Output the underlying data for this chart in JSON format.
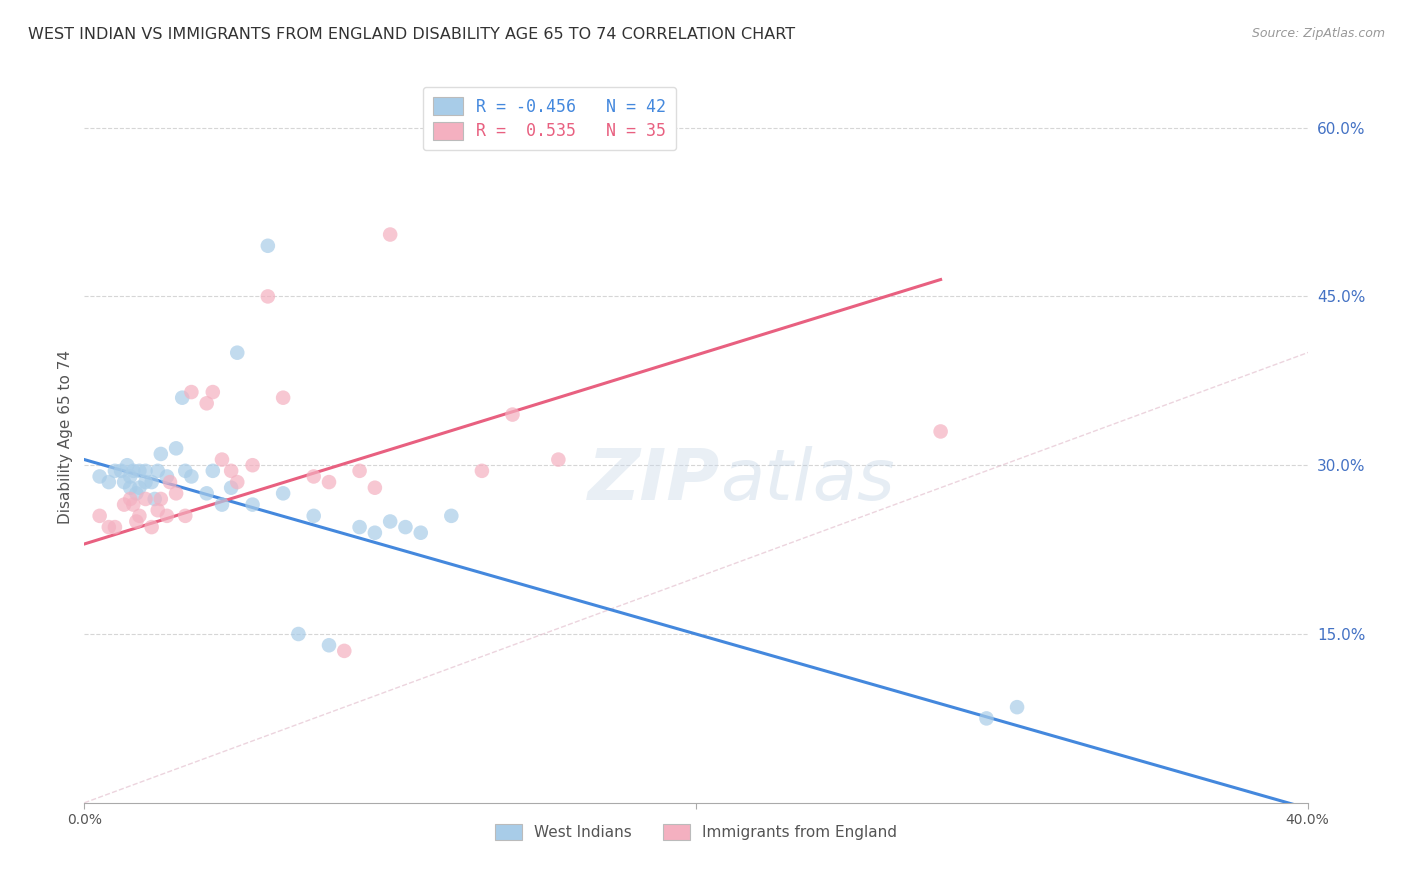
{
  "title": "WEST INDIAN VS IMMIGRANTS FROM ENGLAND DISABILITY AGE 65 TO 74 CORRELATION CHART",
  "source": "Source: ZipAtlas.com",
  "ylabel": "Disability Age 65 to 74",
  "legend_label1": "West Indians",
  "legend_label2": "Immigrants from England",
  "r1": -0.456,
  "n1": 42,
  "r2": 0.535,
  "n2": 35,
  "xmin": 0.0,
  "xmax": 0.4,
  "ymin": 0.0,
  "ymax": 0.65,
  "right_yticks": [
    0.15,
    0.3,
    0.45,
    0.6
  ],
  "right_yticklabels": [
    "15.0%",
    "30.0%",
    "45.0%",
    "60.0%"
  ],
  "xticks": [
    0.0,
    0.4
  ],
  "xticklabels": [
    "0.0%",
    "40.0%"
  ],
  "color_blue": "#a8cce8",
  "color_pink": "#f4b0c0",
  "line_blue": "#4488dd",
  "line_pink": "#e86080",
  "line_dash_color": "#e0b8c8",
  "background": "#ffffff",
  "grid_color": "#cccccc",
  "west_indian_x": [
    0.005,
    0.008,
    0.01,
    0.012,
    0.013,
    0.014,
    0.015,
    0.015,
    0.016,
    0.017,
    0.018,
    0.018,
    0.02,
    0.02,
    0.022,
    0.023,
    0.024,
    0.025,
    0.027,
    0.03,
    0.032,
    0.033,
    0.035,
    0.04,
    0.042,
    0.045,
    0.048,
    0.05,
    0.055,
    0.06,
    0.065,
    0.07,
    0.075,
    0.08,
    0.09,
    0.095,
    0.1,
    0.105,
    0.11,
    0.12,
    0.295,
    0.305
  ],
  "west_indian_y": [
    0.29,
    0.285,
    0.295,
    0.295,
    0.285,
    0.3,
    0.28,
    0.29,
    0.295,
    0.275,
    0.28,
    0.295,
    0.285,
    0.295,
    0.285,
    0.27,
    0.295,
    0.31,
    0.29,
    0.315,
    0.36,
    0.295,
    0.29,
    0.275,
    0.295,
    0.265,
    0.28,
    0.4,
    0.265,
    0.495,
    0.275,
    0.15,
    0.255,
    0.14,
    0.245,
    0.24,
    0.25,
    0.245,
    0.24,
    0.255,
    0.075,
    0.085
  ],
  "england_x": [
    0.005,
    0.008,
    0.01,
    0.013,
    0.015,
    0.016,
    0.017,
    0.018,
    0.02,
    0.022,
    0.024,
    0.025,
    0.027,
    0.028,
    0.03,
    0.033,
    0.035,
    0.04,
    0.042,
    0.045,
    0.048,
    0.05,
    0.055,
    0.06,
    0.065,
    0.075,
    0.08,
    0.085,
    0.09,
    0.095,
    0.1,
    0.13,
    0.14,
    0.155,
    0.28
  ],
  "england_y": [
    0.255,
    0.245,
    0.245,
    0.265,
    0.27,
    0.265,
    0.25,
    0.255,
    0.27,
    0.245,
    0.26,
    0.27,
    0.255,
    0.285,
    0.275,
    0.255,
    0.365,
    0.355,
    0.365,
    0.305,
    0.295,
    0.285,
    0.3,
    0.45,
    0.36,
    0.29,
    0.285,
    0.135,
    0.295,
    0.28,
    0.505,
    0.295,
    0.345,
    0.305,
    0.33
  ],
  "blue_line_x": [
    0.0,
    0.4
  ],
  "blue_line_y": [
    0.305,
    -0.005
  ],
  "pink_line_x": [
    0.0,
    0.28
  ],
  "pink_line_y": [
    0.23,
    0.465
  ],
  "ref_line_x": [
    0.0,
    0.65
  ],
  "ref_line_y": [
    0.0,
    0.65
  ],
  "title_fontsize": 11.5,
  "source_fontsize": 9,
  "axis_label_fontsize": 11,
  "tick_fontsize": 10,
  "legend_fontsize": 12,
  "scatter_size": 110,
  "scatter_alpha": 0.7
}
